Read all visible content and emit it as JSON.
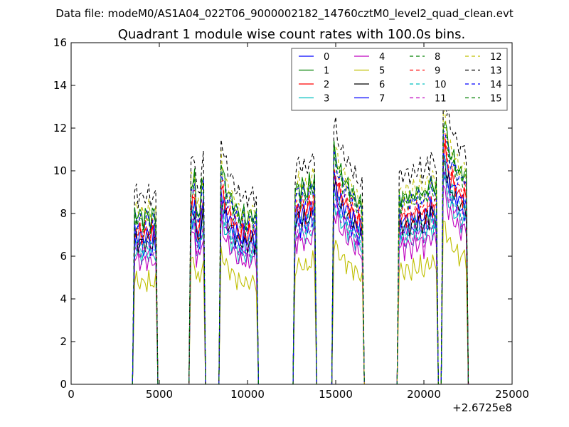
{
  "figure": {
    "suptitle": "Data file: modeM0/AS1A04_022T06_9000002182_14760cztM0_level2_quad_clean.evt"
  },
  "chart_data": {
    "type": "line",
    "title": "Quadrant 1 module wise count rates with 100.0s bins.",
    "xlabel": "",
    "ylabel": "",
    "x_offset_label": "+2.6725e8",
    "xlim": [
      0,
      25000
    ],
    "ylim": [
      0,
      16
    ],
    "x_ticks": [
      0,
      5000,
      10000,
      15000,
      20000,
      25000
    ],
    "y_ticks": [
      0,
      2,
      4,
      6,
      8,
      10,
      12,
      14,
      16
    ],
    "x_tick_labels": [
      "0",
      "5000",
      "10000",
      "15000",
      "20000",
      "25000"
    ],
    "y_tick_labels": [
      "0",
      "2",
      "4",
      "6",
      "8",
      "10",
      "12",
      "14",
      "16"
    ],
    "grid": false,
    "legend": {
      "placement": "top-right",
      "columns": 4
    },
    "segments": [
      {
        "start": 3600,
        "end": 4800,
        "base": [
          8.4,
          8.4,
          8.2,
          8.3,
          8.2,
          8.1,
          8.3,
          8.2,
          8.4,
          8.0,
          8.2,
          8.3,
          8.1
        ]
      },
      {
        "start": 6800,
        "end": 7500,
        "base": [
          9.8,
          10.0,
          10.1,
          8.5,
          8.4,
          8.6,
          9.5,
          9.9
        ]
      },
      {
        "start": 8500,
        "end": 10500,
        "base": [
          11.0,
          10.3,
          9.9,
          9.6,
          9.4,
          9.2,
          9.0,
          8.9,
          8.6,
          8.5,
          8.3,
          8.2,
          8.2,
          8.4,
          8.0,
          8.1,
          8.3,
          8.2,
          8.4,
          8.1,
          8.3
        ]
      },
      {
        "start": 12700,
        "end": 13800,
        "base": [
          9.3,
          9.5,
          9.8,
          9.4,
          9.7,
          9.6,
          9.3,
          9.5,
          9.8,
          9.6,
          9.9,
          10.2
        ]
      },
      {
        "start": 14900,
        "end": 16500,
        "base": [
          11.5,
          11.2,
          10.8,
          10.5,
          10.3,
          10.1,
          10.0,
          9.8,
          9.7,
          9.6,
          9.5,
          9.3,
          9.1,
          9.0,
          8.9,
          8.8,
          8.6
        ]
      },
      {
        "start": 18600,
        "end": 20700,
        "base": [
          9.2,
          9.1,
          9.3,
          9.0,
          9.2,
          9.4,
          9.1,
          9.0,
          9.3,
          9.5,
          9.2,
          9.4,
          9.6,
          9.3,
          9.1,
          9.4,
          9.8,
          9.6,
          10.0,
          9.7,
          9.8,
          9.5
        ]
      },
      {
        "start": 21100,
        "end": 22400,
        "base": [
          12.8,
          13.0,
          12.1,
          11.6,
          11.2,
          11.3,
          10.9,
          10.7,
          10.6,
          10.4,
          10.2,
          10.3,
          10.5,
          10.1
        ]
      }
    ],
    "series": [
      {
        "name": "0",
        "scale": 0.78,
        "color": "#0000ff",
        "dash": false
      },
      {
        "name": "1",
        "scale": 0.96,
        "color": "#008000",
        "dash": false
      },
      {
        "name": "2",
        "scale": 0.85,
        "color": "#ff0000",
        "dash": false
      },
      {
        "name": "3",
        "scale": 0.74,
        "color": "#00bfbf",
        "dash": false
      },
      {
        "name": "4",
        "scale": 0.7,
        "color": "#bf00bf",
        "dash": false
      },
      {
        "name": "5",
        "scale": 0.58,
        "color": "#bfbf00",
        "dash": false
      },
      {
        "name": "6",
        "scale": 0.81,
        "color": "#000000",
        "dash": false
      },
      {
        "name": "7",
        "scale": 0.84,
        "color": "#0000ff",
        "dash": false
      },
      {
        "name": "8",
        "scale": 0.92,
        "color": "#008000",
        "dash": true
      },
      {
        "name": "9",
        "scale": 0.88,
        "color": "#ff0000",
        "dash": true
      },
      {
        "name": "10",
        "scale": 0.79,
        "color": "#00bfbf",
        "dash": true
      },
      {
        "name": "11",
        "scale": 0.76,
        "color": "#bf00bf",
        "dash": true
      },
      {
        "name": "12",
        "scale": 0.98,
        "color": "#bfbf00",
        "dash": true
      },
      {
        "name": "13",
        "scale": 1.07,
        "color": "#000000",
        "dash": true
      },
      {
        "name": "14",
        "scale": 0.93,
        "color": "#0000ff",
        "dash": true
      },
      {
        "name": "15",
        "scale": 0.95,
        "color": "#008000",
        "dash": true
      }
    ]
  }
}
